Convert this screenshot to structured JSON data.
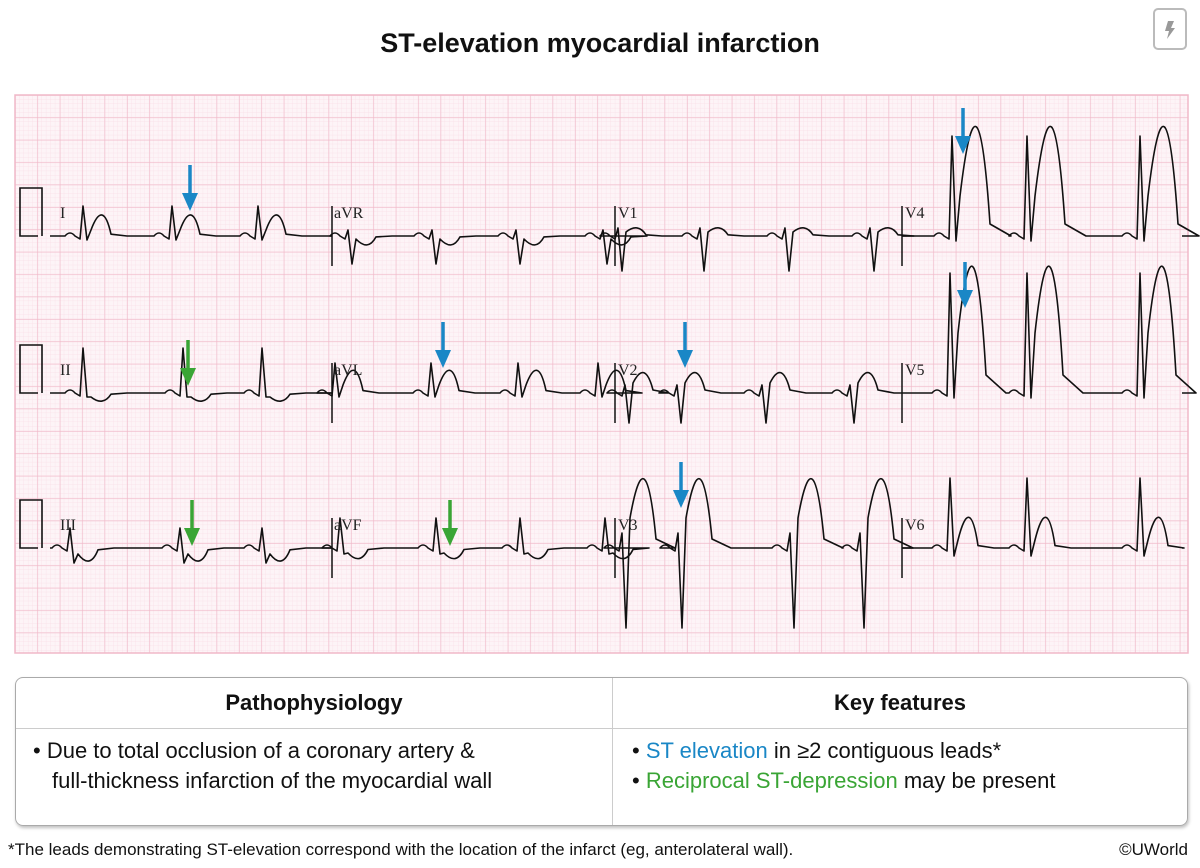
{
  "title": "ST-elevation myocardial infarction",
  "top_icon": "lightning-card-icon",
  "colors": {
    "st_elevation": "#1a87c6",
    "st_depression": "#3aa535",
    "grid_major": "#f0b8c8",
    "grid_minor": "#f9dfe7"
  },
  "ecg": {
    "leads": [
      "I",
      "aVR",
      "V1",
      "V4",
      "II",
      "aVL",
      "V2",
      "V5",
      "III",
      "aVF",
      "V3",
      "V6"
    ],
    "st_elevation_arrows": [
      "I",
      "V4",
      "aVL",
      "V2",
      "V5",
      "V3"
    ],
    "st_depression_arrows": [
      "II",
      "III",
      "aVF"
    ]
  },
  "table": {
    "headers": [
      "Pathophysiology",
      "Key features"
    ],
    "patho_lines": [
      "• Due to total occlusion of a coronary artery &",
      "full-thickness infarction of the myocardial wall"
    ],
    "features": [
      {
        "bullet": "• ",
        "highlight": "ST elevation",
        "rest": " in ≥2 contiguous leads*"
      },
      {
        "bullet": "• ",
        "highlight": "Reciprocal ST-depression",
        "rest": " may be present"
      }
    ]
  },
  "footnote": "*The leads demonstrating ST-elevation correspond with the location of the infarct (eg, anterolateral wall).",
  "copyright": "©UWorld"
}
